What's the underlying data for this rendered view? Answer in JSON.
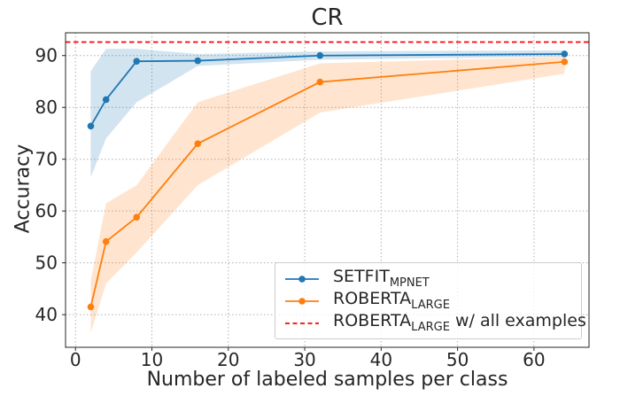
{
  "chart_data": {
    "type": "line",
    "title": "CR",
    "xlabel": "Number of labeled samples per class",
    "ylabel": "Accuracy",
    "x_ticks": [
      0,
      10,
      20,
      30,
      40,
      50,
      60
    ],
    "y_ticks": [
      40,
      50,
      60,
      70,
      80,
      90
    ],
    "xlim": [
      -1.3,
      67.2
    ],
    "ylim": [
      33.7,
      94.4
    ],
    "grid": true,
    "grid_style": "dotted",
    "grid_color": "#b0b0b0",
    "spine_color": "#262626",
    "legend_position": "lower right",
    "x": [
      2,
      4,
      8,
      16,
      32,
      64
    ],
    "series": [
      {
        "name": "SETFIT_MPNET",
        "legend": {
          "main": "SETFIT",
          "sub": "MPNET",
          "suffix": ""
        },
        "color": "#1f77b4",
        "band_color": "rgba(31,119,180,0.2)",
        "values": [
          76.4,
          81.5,
          88.9,
          89.0,
          90.0,
          90.3
        ],
        "band_lower": [
          66.5,
          74.0,
          81.0,
          88.0,
          89.2,
          89.8
        ],
        "band_upper": [
          87.0,
          91.3,
          91.3,
          90.3,
          90.8,
          91.0
        ]
      },
      {
        "name": "ROBERTA_LARGE",
        "legend": {
          "main": "ROBERTA",
          "sub": "LARGE",
          "suffix": ""
        },
        "color": "#ff7f0e",
        "band_color": "rgba(255,127,14,0.2)",
        "values": [
          41.5,
          54.1,
          58.8,
          73.0,
          84.9,
          88.8
        ],
        "band_lower": [
          36.5,
          46.0,
          52.0,
          65.0,
          79.0,
          86.5
        ],
        "band_upper": [
          46.5,
          61.5,
          65.0,
          81.0,
          88.5,
          89.8
        ]
      }
    ],
    "reference_line": {
      "name": "ROBERTA_LARGE w/ all examples",
      "value": 92.6,
      "color": "#ff0000",
      "style": "dashed",
      "legend": {
        "main": "ROBERTA",
        "sub": "LARGE",
        "suffix": " w/ all examples"
      }
    }
  }
}
